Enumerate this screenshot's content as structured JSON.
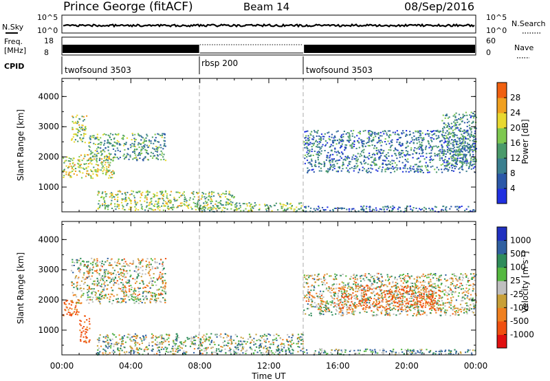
{
  "header": {
    "title": "Prince George (fitACF)",
    "beam": "Beam 14",
    "date": "08/Sep/2016"
  },
  "noise_panel": {
    "left_label": "N.Sky",
    "right_label": "N.Search",
    "left_ticks": [
      "10^5",
      "10^0"
    ],
    "right_ticks": [
      "10^5",
      "10^0"
    ]
  },
  "freq_panel": {
    "left_label_1": "Freq.",
    "left_label_2": "[MHz]",
    "right_label": "Nave",
    "left_ticks": [
      "18",
      "8"
    ],
    "right_ticks": [
      "60",
      "0"
    ]
  },
  "cpid": {
    "label": "CPID",
    "segments": [
      {
        "name": "twofsound 3503",
        "start_hour": 0,
        "end_hour": 8
      },
      {
        "name": "rbsp 200",
        "start_hour": 8,
        "end_hour": 14
      },
      {
        "name": "twofsound 3503",
        "start_hour": 14,
        "end_hour": 24
      }
    ]
  },
  "power_panel": {
    "ylabel": "Slant Range [km]",
    "yticks": [
      "1000",
      "2000",
      "3000",
      "4000"
    ],
    "colorbar_label": "Power [dB]",
    "colorbar_ticks": [
      "4",
      "8",
      "12",
      "16",
      "20",
      "24",
      "28"
    ]
  },
  "velocity_panel": {
    "ylabel": "Slant Range [km]",
    "yticks": [
      "1000",
      "2000",
      "3000",
      "4000"
    ],
    "colorbar_label": "Velocity [m s",
    "colorbar_label_sup": "-1",
    "colorbar_label_end": "]",
    "colorbar_ticks": [
      "1000",
      "500",
      "100",
      "25",
      "-25",
      "-100",
      "-500",
      "-1000"
    ]
  },
  "x_axis": {
    "ticks": [
      "00:00",
      "04:00",
      "08:00",
      "12:00",
      "16:00",
      "20:00",
      "00:00"
    ],
    "label": "Time UT"
  },
  "colors": {
    "power_scale": [
      "#2030e0",
      "#2b58a8",
      "#3b7f8f",
      "#4a9a6a",
      "#7ec850",
      "#e8d830",
      "#f0a020",
      "#f06010",
      "#e81010"
    ],
    "velocity_scale": [
      "#2030c0",
      "#3060a0",
      "#2f8c5a",
      "#55b840",
      "#bfbfbf",
      "#c8a038",
      "#f08020",
      "#f05010",
      "#e01010"
    ]
  },
  "chart_data": [
    {
      "type": "heatmap",
      "quantity": "power",
      "x_range_hours": [
        0,
        24
      ],
      "y_range_km": [
        180,
        4600
      ],
      "value_range_db": [
        0,
        32
      ],
      "grid": false,
      "echo_regions": [
        {
          "t_start": 0.0,
          "t_end": 3.0,
          "range_start": 1300,
          "range_end": 2100,
          "db_mean": 18
        },
        {
          "t_start": 0.5,
          "t_end": 1.5,
          "range_start": 2500,
          "range_end": 3400,
          "db_mean": 16
        },
        {
          "t_start": 1.5,
          "t_end": 6.0,
          "range_start": 1900,
          "range_end": 2800,
          "db_mean": 12
        },
        {
          "t_start": 2.0,
          "t_end": 10.0,
          "range_start": 250,
          "range_end": 900,
          "db_mean": 16
        },
        {
          "t_start": 8.0,
          "t_end": 14.0,
          "range_start": 200,
          "range_end": 500,
          "db_mean": 14
        },
        {
          "t_start": 14.0,
          "t_end": 24.0,
          "range_start": 200,
          "range_end": 400,
          "db_mean": 6
        },
        {
          "t_start": 14.0,
          "t_end": 24.0,
          "range_start": 1500,
          "range_end": 2900,
          "db_mean": 8
        },
        {
          "t_start": 22.0,
          "t_end": 24.0,
          "range_start": 1700,
          "range_end": 3500,
          "db_mean": 10
        }
      ]
    },
    {
      "type": "heatmap",
      "quantity": "velocity",
      "x_range_hours": [
        0,
        24
      ],
      "y_range_km": [
        180,
        4600
      ],
      "value_range_ms": [
        -1000,
        1000
      ],
      "grid": false,
      "echo_regions": [
        {
          "t_start": 0.0,
          "t_end": 1.0,
          "range_start": 1500,
          "range_end": 2100,
          "v_mean": -150
        },
        {
          "t_start": 1.0,
          "t_end": 1.6,
          "range_start": 600,
          "range_end": 1500,
          "v_mean": -150
        },
        {
          "t_start": 0.5,
          "t_end": 6.0,
          "range_start": 1900,
          "range_end": 3400,
          "v_mean": 0
        },
        {
          "t_start": 2.0,
          "t_end": 14.0,
          "range_start": 200,
          "range_end": 900,
          "v_mean": 30
        },
        {
          "t_start": 14.0,
          "t_end": 24.0,
          "range_start": 200,
          "range_end": 400,
          "v_mean": 60
        },
        {
          "t_start": 14.0,
          "t_end": 24.0,
          "range_start": 1500,
          "range_end": 2900,
          "v_mean": 0
        },
        {
          "t_start": 16.0,
          "t_end": 22.0,
          "range_start": 1700,
          "range_end": 2500,
          "v_mean": -120
        }
      ]
    }
  ]
}
